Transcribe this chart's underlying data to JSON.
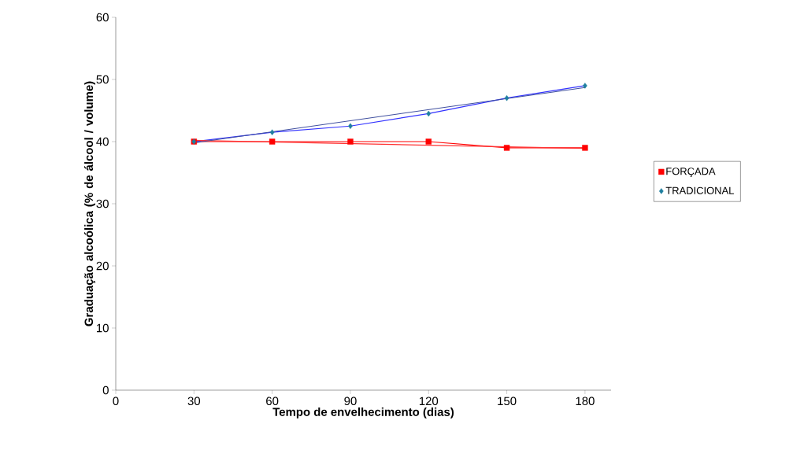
{
  "chart_data": {
    "type": "scatter",
    "xlabel": "Tempo de envelhecimento (dias)",
    "ylabel": "Graduação alcoólica (% de álcool / volume)",
    "x": [
      30,
      60,
      90,
      120,
      150,
      180
    ],
    "series": [
      {
        "name": "FORÇADA",
        "color": "#ff0000",
        "marker": "square",
        "values": [
          40,
          40,
          40,
          40,
          39,
          39
        ]
      },
      {
        "name": "TRADICIONAL",
        "color": "#1f7f9f",
        "marker": "diamond",
        "values": [
          40,
          41.5,
          42.5,
          44.5,
          47,
          49
        ]
      },
      {
        "type": "line",
        "color": "#ff0000",
        "marker": "none",
        "x": [
          30,
          60,
          90,
          120,
          150,
          180
        ],
        "values": [
          40,
          40,
          40,
          40,
          39,
          39
        ]
      },
      {
        "type": "line",
        "color": "#3333ff",
        "marker": "none",
        "x": [
          30,
          60,
          90,
          120,
          150,
          180
        ],
        "values": [
          40,
          41.5,
          42.5,
          44.5,
          47,
          49
        ]
      },
      {
        "type": "line",
        "color": "#ff3333",
        "marker": "none",
        "x": [
          30,
          180
        ],
        "values": [
          40.2,
          38.9
        ]
      },
      {
        "type": "line",
        "color": "#3f4f9f",
        "marker": "none",
        "x": [
          30,
          180
        ],
        "values": [
          39.8,
          48.7
        ]
      }
    ],
    "xlim": [
      0,
      190
    ],
    "ylim": [
      0,
      60
    ],
    "xticks": [
      0,
      30,
      60,
      90,
      120,
      150,
      180
    ],
    "yticks": [
      0,
      10,
      20,
      30,
      40,
      50,
      60
    ],
    "grid": false,
    "legend": "right",
    "line_style": "solid"
  }
}
